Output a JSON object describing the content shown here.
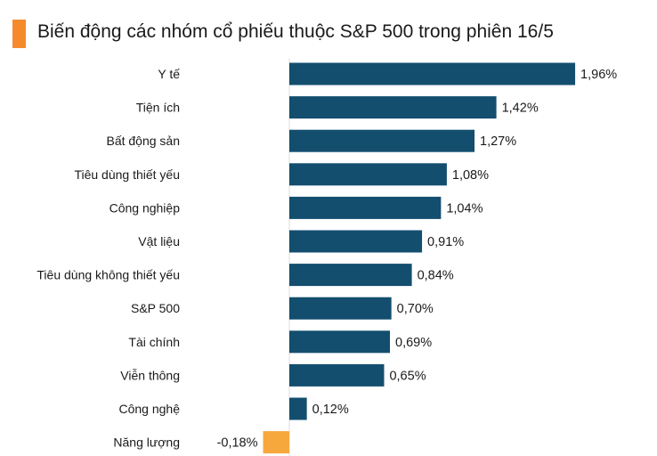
{
  "header": {
    "title": "Biến động các nhóm cổ phiếu thuộc S&P 500 trong phiên 16/5"
  },
  "colors": {
    "accent": "#F58A2C",
    "positive": "#134E6F",
    "negative": "#F7A83C",
    "gridline": "#dcdcdc"
  },
  "chart_data": {
    "type": "bar",
    "orientation": "horizontal",
    "title": "Biến động các nhóm cổ phiếu thuộc S&P 500 trong phiên 16/5",
    "categories": [
      "Y tế",
      "Tiện ích",
      "Bất động sản",
      "Tiêu dùng thiết yếu",
      "Công nghiệp",
      "Vật liệu",
      "Tiêu dùng không thiết yếu",
      "S&P 500",
      "Tài chính",
      "Viễn thông",
      "Công nghệ",
      "Năng lượng"
    ],
    "values": [
      1.96,
      1.42,
      1.27,
      1.08,
      1.04,
      0.91,
      0.84,
      0.7,
      0.69,
      0.65,
      0.12,
      -0.18
    ],
    "value_labels": [
      "1,96%",
      "1,42%",
      "1,27%",
      "1,08%",
      "1,04%",
      "0,91%",
      "0,84%",
      "0,70%",
      "0,69%",
      "0,65%",
      "0,12%",
      "-0,18%"
    ],
    "unit": "%",
    "xlabel": "",
    "ylabel": "",
    "grid": false,
    "legend": "none"
  }
}
